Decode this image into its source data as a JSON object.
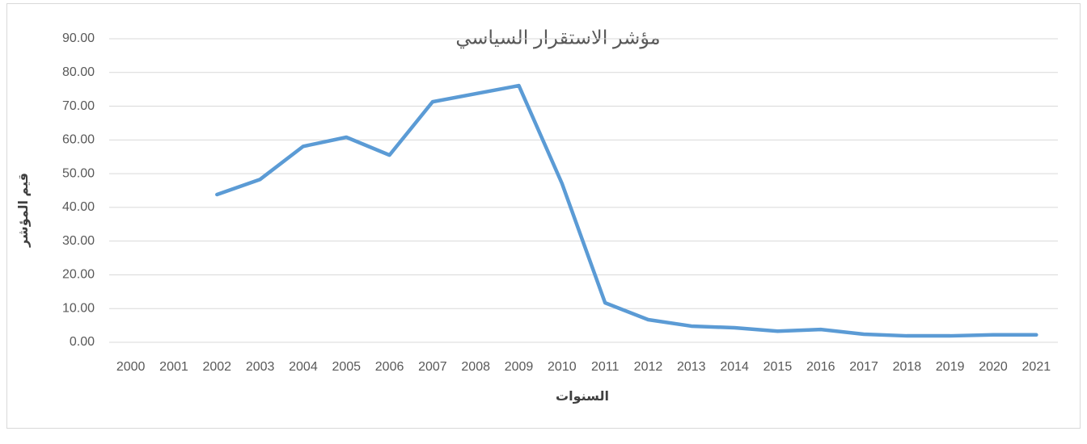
{
  "chart_data": {
    "type": "line",
    "title": "مؤشر الاستقرار السياسي",
    "x_label": "السنوات",
    "y_label": "قيم المؤشر",
    "categories": [
      "2000",
      "2001",
      "2002",
      "2003",
      "2004",
      "2005",
      "2006",
      "2007",
      "2008",
      "2009",
      "2010",
      "2011",
      "2012",
      "2013",
      "2014",
      "2015",
      "2016",
      "2017",
      "2018",
      "2019",
      "2020",
      "2021"
    ],
    "series": [
      {
        "name": "مؤشر الاستقرار السياسي",
        "color": "#5b9bd5",
        "values": [
          null,
          null,
          43.8,
          48.3,
          58.1,
          60.8,
          55.5,
          71.3,
          73.7,
          76.1,
          47.1,
          11.7,
          6.7,
          4.8,
          4.3,
          3.3,
          3.8,
          2.4,
          1.9,
          1.9,
          2.2,
          2.2
        ]
      }
    ],
    "ylim": [
      0,
      90
    ],
    "yticks": [
      {
        "value": 0,
        "label": "0.00"
      },
      {
        "value": 10,
        "label": "10.00"
      },
      {
        "value": 20,
        "label": "20.00"
      },
      {
        "value": 30,
        "label": "30.00"
      },
      {
        "value": 40,
        "label": "40.00"
      },
      {
        "value": 50,
        "label": "50.00"
      },
      {
        "value": 60,
        "label": "60.00"
      },
      {
        "value": 70,
        "label": "70.00"
      },
      {
        "value": 80,
        "label": "80.00"
      },
      {
        "value": 90,
        "label": "90.00"
      }
    ],
    "grid": true
  }
}
